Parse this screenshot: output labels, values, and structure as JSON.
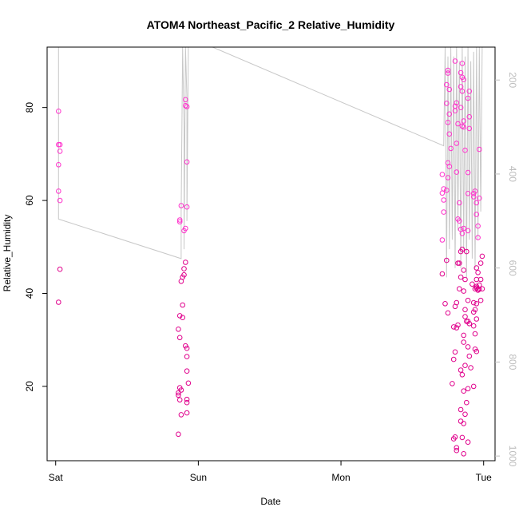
{
  "chart_data": {
    "type": "scatter",
    "title": "ATOM4 Northeast_Pacific_2 Relative_Humidity",
    "xlabel": "Date",
    "ylabel": "Relative_Humidity",
    "x_ticks": [
      {
        "day": 0,
        "label": "Sat"
      },
      {
        "day": 1,
        "label": "Sun"
      },
      {
        "day": 2,
        "label": "Mon"
      },
      {
        "day": 3,
        "label": "Tue"
      }
    ],
    "xlim": [
      -0.06,
      3.08
    ],
    "ylim": [
      4,
      93
    ],
    "y_ticks": [
      20,
      40,
      60,
      80
    ],
    "y2_ticks": [
      200,
      400,
      600,
      800,
      1000
    ],
    "y2lim": [
      1010,
      130
    ],
    "colors": {
      "point_low": "#e0008c",
      "point_high": "#ff33cc",
      "line": "#c8c8c8",
      "right_axis": "#bdbdbd"
    },
    "series": [
      {
        "kind": "points",
        "x_unit": "days since Sat 00:00",
        "points": [
          [
            0.02,
            79.2
          ],
          [
            0.02,
            72.0
          ],
          [
            0.03,
            72.0
          ],
          [
            0.03,
            70.6
          ],
          [
            0.02,
            67.7
          ],
          [
            0.02,
            62.0
          ],
          [
            0.03,
            60.0
          ],
          [
            0.03,
            45.2
          ],
          [
            0.02,
            38.1
          ],
          [
            0.88,
            58.9
          ],
          [
            0.87,
            55.8
          ],
          [
            0.87,
            55.4
          ],
          [
            0.9,
            53.5
          ],
          [
            0.91,
            54.0
          ],
          [
            0.91,
            46.7
          ],
          [
            0.9,
            45.3
          ],
          [
            0.9,
            44.0
          ],
          [
            0.89,
            43.5
          ],
          [
            0.88,
            42.6
          ],
          [
            0.89,
            37.5
          ],
          [
            0.87,
            35.2
          ],
          [
            0.89,
            34.8
          ],
          [
            0.86,
            32.3
          ],
          [
            0.87,
            30.5
          ],
          [
            0.91,
            28.7
          ],
          [
            0.92,
            28.2
          ],
          [
            0.92,
            26.4
          ],
          [
            0.92,
            23.3
          ],
          [
            0.93,
            20.7
          ],
          [
            0.87,
            19.7
          ],
          [
            0.88,
            19.2
          ],
          [
            0.86,
            18.6
          ],
          [
            0.86,
            18.1
          ],
          [
            0.87,
            17.1
          ],
          [
            0.92,
            17.2
          ],
          [
            0.92,
            16.5
          ],
          [
            0.88,
            13.9
          ],
          [
            0.92,
            14.3
          ],
          [
            0.86,
            9.7
          ],
          [
            0.91,
            81.7
          ],
          [
            0.91,
            80.4
          ],
          [
            0.92,
            80.2
          ],
          [
            0.92,
            68.3
          ],
          [
            0.92,
            58.6
          ],
          [
            2.71,
            65.6
          ],
          [
            2.72,
            62.5
          ],
          [
            2.71,
            61.6
          ],
          [
            2.72,
            60.1
          ],
          [
            2.72,
            57.5
          ],
          [
            2.71,
            51.5
          ],
          [
            2.71,
            44.2
          ],
          [
            2.73,
            37.8
          ],
          [
            2.75,
            35.8
          ],
          [
            2.74,
            47.1
          ],
          [
            2.74,
            62.2
          ],
          [
            2.75,
            64.9
          ],
          [
            2.76,
            67.3
          ],
          [
            2.75,
            68.1
          ],
          [
            2.76,
            74.3
          ],
          [
            2.77,
            71.2
          ],
          [
            2.75,
            76.8
          ],
          [
            2.76,
            78.6
          ],
          [
            2.74,
            80.9
          ],
          [
            2.76,
            83.9
          ],
          [
            2.74,
            84.9
          ],
          [
            2.75,
            87.4
          ],
          [
            2.75,
            88.0
          ],
          [
            2.8,
            90.0
          ],
          [
            2.81,
            81.0
          ],
          [
            2.8,
            80.3
          ],
          [
            2.8,
            79.3
          ],
          [
            2.82,
            76.5
          ],
          [
            2.81,
            72.3
          ],
          [
            2.81,
            66.1
          ],
          [
            2.83,
            59.5
          ],
          [
            2.82,
            56.0
          ],
          [
            2.83,
            55.6
          ],
          [
            2.84,
            53.8
          ],
          [
            2.85,
            52.9
          ],
          [
            2.84,
            49.0
          ],
          [
            2.83,
            46.5
          ],
          [
            2.82,
            46.5
          ],
          [
            2.84,
            43.5
          ],
          [
            2.83,
            41.0
          ],
          [
            2.81,
            38.0
          ],
          [
            2.8,
            37.2
          ],
          [
            2.82,
            33.2
          ],
          [
            2.81,
            32.6
          ],
          [
            2.79,
            32.8
          ],
          [
            2.8,
            27.4
          ],
          [
            2.79,
            25.8
          ],
          [
            2.78,
            20.6
          ],
          [
            2.8,
            9.1
          ],
          [
            2.79,
            8.7
          ],
          [
            2.81,
            6.8
          ],
          [
            2.81,
            6.2
          ],
          [
            2.85,
            89.5
          ],
          [
            2.84,
            87.5
          ],
          [
            2.85,
            86.5
          ],
          [
            2.86,
            86.0
          ],
          [
            2.84,
            84.5
          ],
          [
            2.85,
            83.5
          ],
          [
            2.84,
            80.0
          ],
          [
            2.86,
            77.1
          ],
          [
            2.85,
            76.0
          ],
          [
            2.86,
            75.8
          ],
          [
            2.87,
            70.8
          ],
          [
            2.86,
            54.0
          ],
          [
            2.85,
            49.5
          ],
          [
            2.86,
            45.0
          ],
          [
            2.87,
            43.0
          ],
          [
            2.86,
            40.5
          ],
          [
            2.87,
            36.5
          ],
          [
            2.87,
            35.0
          ],
          [
            2.88,
            34.0
          ],
          [
            2.86,
            31.0
          ],
          [
            2.86,
            29.5
          ],
          [
            2.87,
            24.5
          ],
          [
            2.84,
            23.5
          ],
          [
            2.85,
            22.5
          ],
          [
            2.86,
            19.0
          ],
          [
            2.84,
            15.0
          ],
          [
            2.86,
            12.0
          ],
          [
            2.84,
            12.5
          ],
          [
            2.85,
            9.0
          ],
          [
            2.86,
            5.5
          ],
          [
            2.87,
            14.0
          ],
          [
            2.89,
            8.0
          ],
          [
            2.9,
            83.5
          ],
          [
            2.89,
            82.0
          ],
          [
            2.9,
            78.0
          ],
          [
            2.9,
            75.5
          ],
          [
            2.89,
            66.0
          ],
          [
            2.89,
            61.5
          ],
          [
            2.89,
            53.5
          ],
          [
            2.88,
            49.0
          ],
          [
            2.89,
            38.5
          ],
          [
            2.89,
            34.0
          ],
          [
            2.9,
            33.5
          ],
          [
            2.89,
            28.5
          ],
          [
            2.9,
            26.5
          ],
          [
            2.91,
            24.0
          ],
          [
            2.88,
            16.5
          ],
          [
            2.89,
            19.5
          ],
          [
            2.93,
            61.5
          ],
          [
            2.93,
            60.8
          ],
          [
            2.94,
            62.0
          ],
          [
            2.95,
            59.5
          ],
          [
            2.95,
            57.0
          ],
          [
            2.96,
            54.5
          ],
          [
            2.96,
            52.0
          ],
          [
            2.95,
            45.5
          ],
          [
            2.96,
            44.5
          ],
          [
            2.95,
            43.0
          ],
          [
            2.95,
            41.5
          ],
          [
            2.95,
            41.2
          ],
          [
            2.96,
            41.0
          ],
          [
            2.94,
            41.0
          ],
          [
            2.96,
            40.7
          ],
          [
            2.97,
            40.9
          ],
          [
            2.93,
            38.0
          ],
          [
            2.95,
            37.8
          ],
          [
            2.94,
            36.5
          ],
          [
            2.95,
            34.5
          ],
          [
            2.93,
            33.0
          ],
          [
            2.94,
            31.3
          ],
          [
            2.94,
            28.0
          ],
          [
            2.95,
            27.5
          ],
          [
            2.93,
            20.0
          ],
          [
            2.98,
            43.0
          ],
          [
            2.99,
            48.0
          ],
          [
            2.98,
            46.5
          ],
          [
            2.97,
            60.5
          ],
          [
            2.97,
            71.0
          ],
          [
            2.99,
            41.0
          ],
          [
            2.98,
            38.5
          ],
          [
            2.97,
            41.8
          ],
          [
            2.93,
            36.0
          ],
          [
            2.92,
            42.0
          ]
        ]
      },
      {
        "kind": "line",
        "axis": "right",
        "x_unit": "days since Sat 00:00",
        "points": [
          [
            0.03,
            130
          ],
          [
            0.02,
            130
          ],
          [
            0.02,
            496
          ],
          [
            0.88,
            580
          ],
          [
            0.88,
            480
          ],
          [
            0.89,
            130
          ],
          [
            0.9,
            300
          ],
          [
            0.9,
            560
          ],
          [
            0.91,
            130
          ],
          [
            0.92,
            240
          ],
          [
            0.92,
            500
          ],
          [
            0.93,
            130
          ],
          [
            1.1,
            130
          ],
          [
            2.72,
            340
          ],
          [
            2.73,
            130
          ],
          [
            2.74,
            620
          ],
          [
            2.75,
            150
          ],
          [
            2.76,
            560
          ],
          [
            2.77,
            130
          ],
          [
            2.78,
            540
          ],
          [
            2.79,
            150
          ],
          [
            2.8,
            600
          ],
          [
            2.81,
            130
          ],
          [
            2.82,
            520
          ],
          [
            2.83,
            160
          ],
          [
            2.84,
            600
          ],
          [
            2.85,
            130
          ],
          [
            2.86,
            560
          ],
          [
            2.87,
            150
          ],
          [
            2.88,
            620
          ],
          [
            2.89,
            130
          ],
          [
            2.9,
            540
          ],
          [
            2.91,
            160
          ],
          [
            2.92,
            580
          ],
          [
            2.93,
            140
          ],
          [
            2.94,
            600
          ],
          [
            2.95,
            130
          ],
          [
            2.96,
            540
          ],
          [
            2.97,
            130
          ],
          [
            2.98,
            480
          ],
          [
            2.99,
            130
          ],
          [
            3.0,
            130
          ]
        ]
      }
    ]
  }
}
